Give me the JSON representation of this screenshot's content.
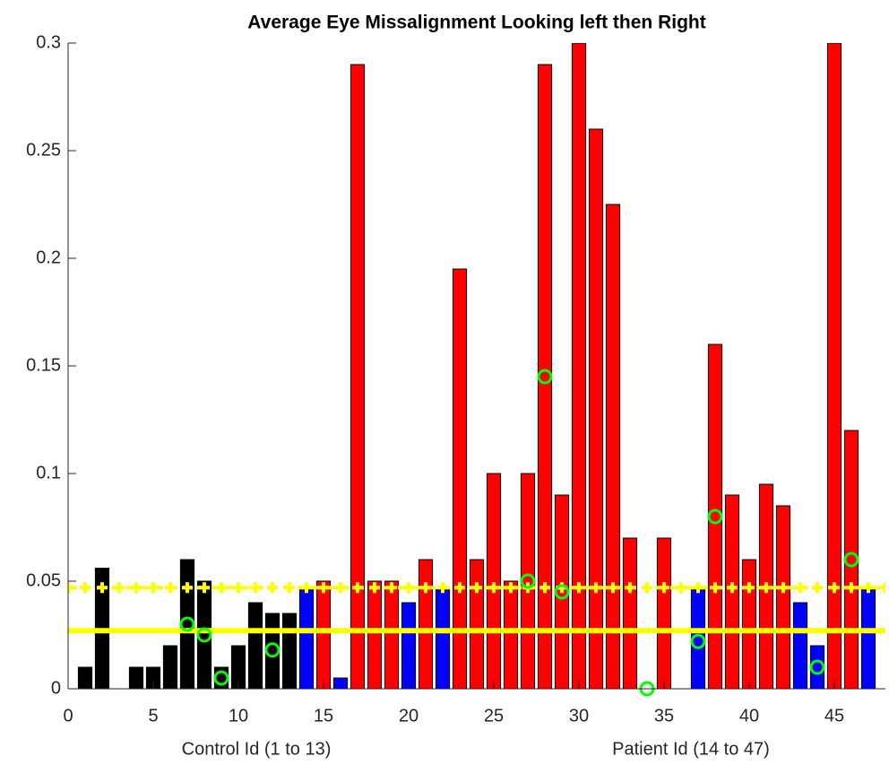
{
  "chart_data": {
    "type": "bar",
    "title": "Average Eye Missalignment Looking left then Right",
    "x": [
      1,
      2,
      3,
      4,
      5,
      6,
      7,
      8,
      9,
      10,
      11,
      12,
      13,
      14,
      15,
      16,
      17,
      18,
      19,
      20,
      21,
      22,
      23,
      24,
      25,
      26,
      27,
      28,
      29,
      30,
      31,
      32,
      33,
      34,
      35,
      36,
      37,
      38,
      39,
      40,
      41,
      42,
      43,
      44,
      45,
      46,
      47
    ],
    "values": [
      0.01,
      0.056,
      0,
      0.01,
      0.01,
      0.02,
      0.06,
      0.05,
      0.01,
      0.02,
      0.04,
      0.035,
      0.035,
      0.046,
      0.05,
      0.005,
      0.29,
      0.05,
      0.05,
      0.04,
      0.06,
      0.046,
      0.195,
      0.06,
      0.1,
      0.05,
      0.1,
      0.29,
      0.09,
      0.3,
      0.26,
      0.225,
      0.07,
      0,
      0.07,
      0,
      0.046,
      0.16,
      0.09,
      0.06,
      0.095,
      0.085,
      0.04,
      0.02,
      0.3,
      0.12,
      0.046
    ],
    "colors": [
      "#000000",
      "#000000",
      "#000000",
      "#000000",
      "#000000",
      "#000000",
      "#000000",
      "#000000",
      "#000000",
      "#000000",
      "#000000",
      "#000000",
      "#000000",
      "#0000ff",
      "#ff0000",
      "#0000ff",
      "#ff0000",
      "#ff0000",
      "#ff0000",
      "#0000ff",
      "#ff0000",
      "#0000ff",
      "#ff0000",
      "#ff0000",
      "#ff0000",
      "#ff0000",
      "#ff0000",
      "#ff0000",
      "#ff0000",
      "#ff0000",
      "#ff0000",
      "#ff0000",
      "#ff0000",
      "#ff0000",
      "#ff0000",
      "#ff0000",
      "#0000ff",
      "#ff0000",
      "#ff0000",
      "#ff0000",
      "#ff0000",
      "#ff0000",
      "#0000ff",
      "#0000ff",
      "#ff0000",
      "#ff0000",
      "#0000ff"
    ],
    "markers": {
      "color": "#00ff00",
      "x": [
        7,
        8,
        9,
        12,
        27,
        28,
        29,
        34,
        37,
        38,
        44,
        46
      ],
      "values": [
        0.03,
        0.025,
        0.005,
        0.018,
        0.05,
        0.145,
        0.045,
        0,
        0.022,
        0.08,
        0.01,
        0.06
      ]
    },
    "reference_lines": [
      {
        "value": 0.047,
        "color": "#ffff00",
        "style": "plus"
      },
      {
        "value": 0.027,
        "color": "#ffff00",
        "style": "solid"
      }
    ],
    "annotations": [
      "Control Id (1 to 13)",
      "Patient Id (14 to 47)"
    ],
    "xlim": [
      0,
      48
    ],
    "xticks": [
      0,
      5,
      10,
      15,
      20,
      25,
      30,
      35,
      40,
      45
    ],
    "ylim": [
      0,
      0.3
    ],
    "yticks": [
      0,
      0.05,
      0.1,
      0.15,
      0.2,
      0.25,
      0.3
    ]
  }
}
